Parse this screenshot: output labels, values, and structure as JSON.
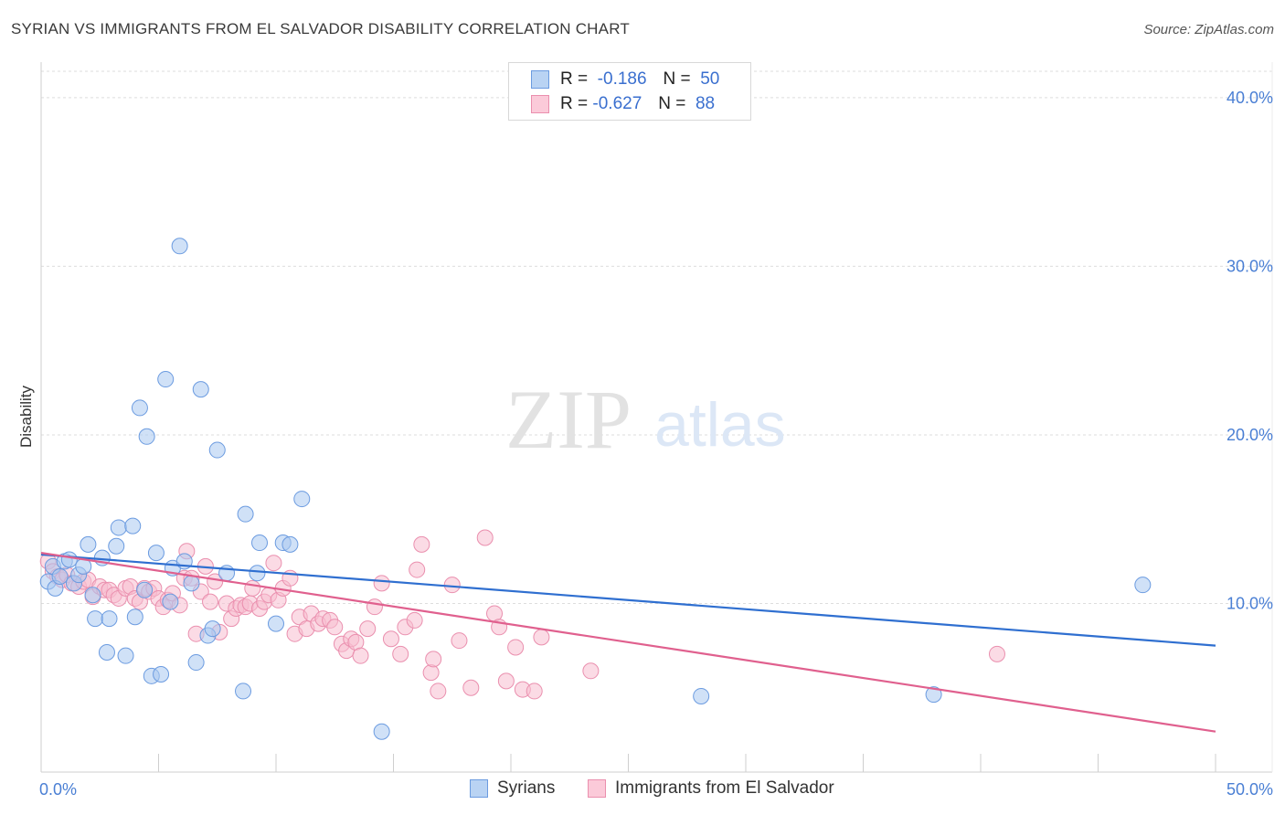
{
  "header": {
    "title": "SYRIAN VS IMMIGRANTS FROM EL SALVADOR DISABILITY CORRELATION CHART",
    "source": "Source: ZipAtlas.com"
  },
  "watermark": {
    "zip": "ZIP",
    "atlas": "atlas"
  },
  "legend": {
    "rows": [
      {
        "r_label": "R =",
        "r_value": "-0.186",
        "n_label": "N =",
        "n_value": "50"
      },
      {
        "r_label": "R =",
        "r_value": "-0.627",
        "n_label": "N =",
        "n_value": "88"
      }
    ]
  },
  "bottom_legend": [
    "Syrians",
    "Immigrants from El Salvador"
  ],
  "colors": {
    "blue_fill": "#a9c8f0",
    "blue_stroke": "#6b9be0",
    "blue_line": "#2f6fd0",
    "pink_fill": "#f7bdd0",
    "pink_stroke": "#ea8fae",
    "pink_line": "#e0608e",
    "tick_text": "#4a7fd4",
    "grid": "#dddddd"
  },
  "chart_data": {
    "type": "scatter",
    "title": "SYRIAN VS IMMIGRANTS FROM EL SALVADOR DISABILITY CORRELATION CHART",
    "xlabel": "",
    "ylabel": "Disability",
    "xlim": [
      0,
      50
    ],
    "ylim": [
      0,
      42
    ],
    "x_tick_labels": [
      "0.0%",
      "50.0%"
    ],
    "y_ticks": [
      10,
      20,
      30,
      40
    ],
    "y_tick_labels": [
      "10.0%",
      "20.0%",
      "30.0%",
      "40.0%"
    ],
    "grid": true,
    "legend_position": "top-center",
    "series": [
      {
        "name": "Syrians",
        "r": -0.186,
        "n": 50,
        "trend": {
          "x0": 0,
          "y0": 12.9,
          "x1": 50,
          "y1": 7.5
        },
        "points": [
          [
            0.3,
            11.3
          ],
          [
            0.5,
            12.2
          ],
          [
            0.6,
            10.9
          ],
          [
            0.8,
            11.6
          ],
          [
            1.0,
            12.5
          ],
          [
            1.2,
            12.6
          ],
          [
            1.4,
            11.2
          ],
          [
            1.6,
            11.7
          ],
          [
            1.8,
            12.2
          ],
          [
            2.0,
            13.5
          ],
          [
            2.2,
            10.5
          ],
          [
            2.3,
            9.1
          ],
          [
            2.6,
            12.7
          ],
          [
            2.8,
            7.1
          ],
          [
            2.9,
            9.1
          ],
          [
            3.2,
            13.4
          ],
          [
            3.3,
            14.5
          ],
          [
            3.6,
            6.9
          ],
          [
            3.9,
            14.6
          ],
          [
            4.0,
            9.2
          ],
          [
            4.2,
            21.6
          ],
          [
            4.4,
            10.8
          ],
          [
            4.5,
            19.9
          ],
          [
            4.7,
            5.7
          ],
          [
            4.9,
            13.0
          ],
          [
            5.1,
            5.8
          ],
          [
            5.3,
            23.3
          ],
          [
            5.5,
            10.1
          ],
          [
            5.6,
            12.1
          ],
          [
            5.9,
            31.2
          ],
          [
            6.1,
            12.5
          ],
          [
            6.4,
            11.2
          ],
          [
            6.6,
            6.5
          ],
          [
            6.8,
            22.7
          ],
          [
            7.1,
            8.1
          ],
          [
            7.3,
            8.5
          ],
          [
            7.5,
            19.1
          ],
          [
            7.9,
            11.8
          ],
          [
            8.6,
            4.8
          ],
          [
            8.7,
            15.3
          ],
          [
            9.2,
            11.8
          ],
          [
            9.3,
            13.6
          ],
          [
            10.0,
            8.8
          ],
          [
            10.3,
            13.6
          ],
          [
            10.6,
            13.5
          ],
          [
            11.1,
            16.2
          ],
          [
            14.5,
            2.4
          ],
          [
            28.1,
            4.5
          ],
          [
            38.0,
            4.6
          ],
          [
            46.9,
            11.1
          ]
        ]
      },
      {
        "name": "Immigrants from El Salvador",
        "r": -0.627,
        "n": 88,
        "trend": {
          "x0": 0,
          "y0": 13.0,
          "x1": 50,
          "y1": 2.4
        },
        "points": [
          [
            0.3,
            12.5
          ],
          [
            0.5,
            11.9
          ],
          [
            0.7,
            11.6
          ],
          [
            0.9,
            11.4
          ],
          [
            1.1,
            11.7
          ],
          [
            1.3,
            11.2
          ],
          [
            1.6,
            11.0
          ],
          [
            1.8,
            11.3
          ],
          [
            2.0,
            11.4
          ],
          [
            2.2,
            10.4
          ],
          [
            2.5,
            11.0
          ],
          [
            2.7,
            10.8
          ],
          [
            2.9,
            10.8
          ],
          [
            3.1,
            10.5
          ],
          [
            3.3,
            10.3
          ],
          [
            3.6,
            10.9
          ],
          [
            3.8,
            11.0
          ],
          [
            4.0,
            10.3
          ],
          [
            4.2,
            10.1
          ],
          [
            4.4,
            10.9
          ],
          [
            4.6,
            10.7
          ],
          [
            4.8,
            10.9
          ],
          [
            5.0,
            10.3
          ],
          [
            5.2,
            9.8
          ],
          [
            5.4,
            10.2
          ],
          [
            5.6,
            10.6
          ],
          [
            5.9,
            9.9
          ],
          [
            6.1,
            11.5
          ],
          [
            6.2,
            13.1
          ],
          [
            6.4,
            11.5
          ],
          [
            6.6,
            8.2
          ],
          [
            6.8,
            10.7
          ],
          [
            7.0,
            12.2
          ],
          [
            7.2,
            10.1
          ],
          [
            7.4,
            11.3
          ],
          [
            7.6,
            8.3
          ],
          [
            7.9,
            10.0
          ],
          [
            8.1,
            9.1
          ],
          [
            8.3,
            9.7
          ],
          [
            8.5,
            9.9
          ],
          [
            8.7,
            9.8
          ],
          [
            8.9,
            10.0
          ],
          [
            9.0,
            10.9
          ],
          [
            9.3,
            9.7
          ],
          [
            9.5,
            10.1
          ],
          [
            9.7,
            10.5
          ],
          [
            9.9,
            12.4
          ],
          [
            10.1,
            10.2
          ],
          [
            10.3,
            10.9
          ],
          [
            10.6,
            11.5
          ],
          [
            10.8,
            8.2
          ],
          [
            11.0,
            9.2
          ],
          [
            11.3,
            8.5
          ],
          [
            11.5,
            9.4
          ],
          [
            11.8,
            8.8
          ],
          [
            12.0,
            9.1
          ],
          [
            12.3,
            9.0
          ],
          [
            12.5,
            8.6
          ],
          [
            12.8,
            7.6
          ],
          [
            13.0,
            7.2
          ],
          [
            13.2,
            7.9
          ],
          [
            13.4,
            7.7
          ],
          [
            13.6,
            6.9
          ],
          [
            13.9,
            8.5
          ],
          [
            14.2,
            9.8
          ],
          [
            14.5,
            11.2
          ],
          [
            14.9,
            7.9
          ],
          [
            15.3,
            7.0
          ],
          [
            15.5,
            8.6
          ],
          [
            15.9,
            9.0
          ],
          [
            16.0,
            12.0
          ],
          [
            16.2,
            13.5
          ],
          [
            16.6,
            5.9
          ],
          [
            16.7,
            6.7
          ],
          [
            16.9,
            4.8
          ],
          [
            17.5,
            11.1
          ],
          [
            17.8,
            7.8
          ],
          [
            18.3,
            5.0
          ],
          [
            18.9,
            13.9
          ],
          [
            19.3,
            9.4
          ],
          [
            19.5,
            8.6
          ],
          [
            19.8,
            5.4
          ],
          [
            20.2,
            7.4
          ],
          [
            20.5,
            4.9
          ],
          [
            21.0,
            4.8
          ],
          [
            21.3,
            8.0
          ],
          [
            23.4,
            6.0
          ],
          [
            40.7,
            7.0
          ]
        ]
      }
    ]
  }
}
